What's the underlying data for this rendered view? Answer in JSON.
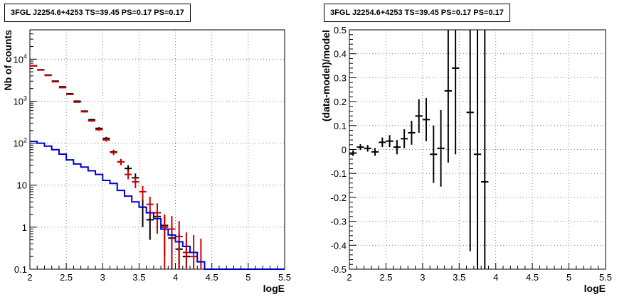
{
  "chart_data": [
    {
      "type": "line",
      "title": "3FGL J2254.6+4253 TS=39.45 PS=0.17 PS=0.17",
      "xlabel": "logE",
      "ylabel": "Nb of counts",
      "xlim": [
        2,
        5.5
      ],
      "ylim": [
        0.1,
        50000
      ],
      "log_y": true,
      "grid": true,
      "x_ticks": [
        "2",
        "2.5",
        "3",
        "3.5",
        "4",
        "4.5",
        "5",
        "5.5"
      ],
      "y_ticks": [
        "0.1",
        "1",
        "10",
        "10^2",
        "10^3",
        "10^4"
      ],
      "series": [
        {
          "color": "#000000",
          "x": [
            2.05,
            2.15,
            2.25,
            2.35,
            2.45,
            2.55,
            2.65,
            2.75,
            2.85,
            2.95,
            3.05,
            3.15,
            3.25,
            3.35,
            3.45,
            3.55,
            3.65,
            3.75,
            3.85,
            3.95,
            4.05,
            4.15
          ],
          "y": [
            7000,
            5600,
            4200,
            3000,
            2200,
            1500,
            1000,
            580,
            360,
            225,
            130,
            62,
            36,
            25,
            15,
            3,
            1.5,
            1.8,
            1.1,
            0.55,
            0.3,
            0.2
          ],
          "err": [
            90,
            80,
            70,
            60,
            50,
            40,
            30,
            25,
            20,
            15,
            11,
            8,
            6,
            5,
            4,
            2,
            1,
            1.1,
            0.9,
            0.6,
            0.4,
            0.3
          ]
        },
        {
          "color": "#cc0000",
          "x": [
            2.05,
            2.15,
            2.25,
            2.35,
            2.45,
            2.55,
            2.65,
            2.75,
            2.85,
            2.95,
            3.05,
            3.15,
            3.25,
            3.35,
            3.45,
            3.55,
            3.65,
            3.75,
            3.85,
            3.95,
            4.05,
            4.15,
            4.25,
            4.35
          ],
          "y": [
            6900,
            5500,
            4100,
            2900,
            2100,
            1450,
            950,
            560,
            340,
            210,
            120,
            60,
            36,
            18,
            12,
            7,
            3.5,
            2.2,
            1.0,
            0.9,
            0.6,
            0.25,
            0.2,
            0.15
          ],
          "err": [
            85,
            75,
            65,
            55,
            46,
            38,
            31,
            24,
            18,
            14,
            11,
            8,
            6,
            4.2,
            3.5,
            2.6,
            1.8,
            1.5,
            1.0,
            0.95,
            0.8,
            0.5,
            0.45,
            0.38
          ]
        },
        {
          "color": "#0000cc",
          "step": true,
          "bin_edges": [
            2.0,
            2.1,
            2.2,
            2.3,
            2.4,
            2.5,
            2.6,
            2.7,
            2.8,
            2.9,
            3.0,
            3.1,
            3.2,
            3.3,
            3.4,
            3.5,
            3.6,
            3.7,
            3.8,
            3.9,
            4.0,
            4.1,
            4.2,
            4.3,
            4.4,
            5.5
          ],
          "values": [
            110,
            100,
            85,
            70,
            55,
            40,
            32,
            27,
            22,
            18,
            13,
            11,
            7.5,
            5.5,
            4,
            3,
            2.2,
            1.6,
            0.9,
            0.65,
            0.45,
            0.35,
            0.25,
            0.15,
            0.1
          ]
        }
      ]
    },
    {
      "type": "scatter",
      "title": "3FGL J2254.6+4253 TS=39.45 PS=0.17 PS=0.17",
      "xlabel": "logE",
      "ylabel": "(data-model)/model",
      "xlim": [
        2,
        5.5
      ],
      "ylim": [
        -0.5,
        0.5
      ],
      "grid": true,
      "x_ticks": [
        "2",
        "2.5",
        "3",
        "3.5",
        "4",
        "4.5",
        "5",
        "5.5"
      ],
      "y_ticks": [
        "-0.5",
        "-0.4",
        "-0.3",
        "-0.2",
        "-0.1",
        "0",
        "0.1",
        "0.2",
        "0.3",
        "0.4",
        "0.5"
      ],
      "series": [
        {
          "color": "#000000",
          "x": [
            2.05,
            2.15,
            2.25,
            2.35,
            2.45,
            2.55,
            2.65,
            2.75,
            2.85,
            2.95,
            3.05,
            3.15,
            3.25,
            3.35,
            3.45,
            3.65,
            3.75,
            3.85
          ],
          "y": [
            -0.015,
            0.01,
            0.005,
            -0.01,
            0.03,
            0.035,
            0.01,
            0.045,
            0.07,
            0.14,
            0.125,
            -0.02,
            0.005,
            0.245,
            0.34,
            0.155,
            -0.02,
            -0.135
          ],
          "err": [
            0.012,
            0.012,
            0.014,
            0.016,
            0.02,
            0.025,
            0.03,
            0.04,
            0.05,
            0.07,
            0.09,
            0.12,
            0.16,
            0.3,
            0.36,
            0.58,
            0.9,
            0.9
          ]
        }
      ]
    }
  ]
}
